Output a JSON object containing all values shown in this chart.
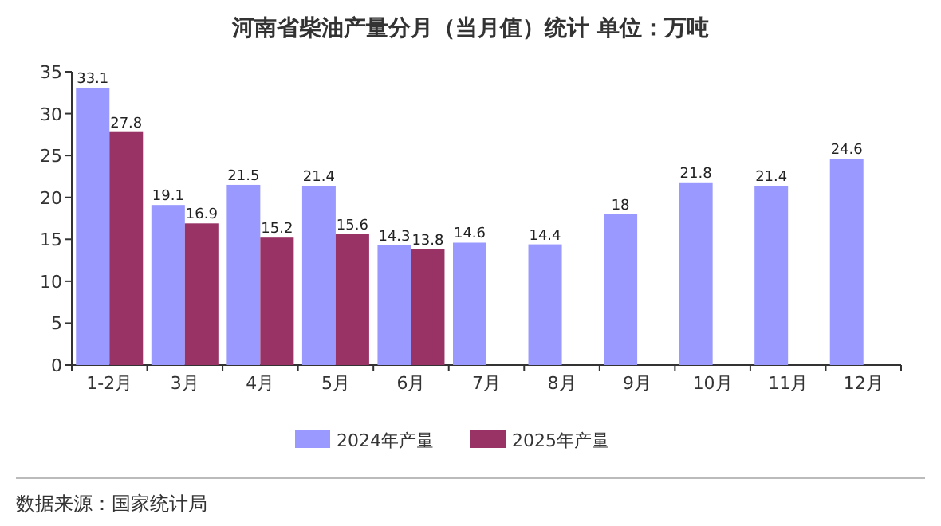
{
  "chart_data": {
    "type": "bar",
    "title": "河南省柴油产量分月（当月值）统计  单位：万吨",
    "categories": [
      "1-2月",
      "3月",
      "4月",
      "5月",
      "6月",
      "7月",
      "8月",
      "9月",
      "10月",
      "11月",
      "12月"
    ],
    "series": [
      {
        "name": "2024年产量",
        "color": "#9999ff",
        "values": [
          33.1,
          19.1,
          21.5,
          21.4,
          14.3,
          14.6,
          14.4,
          18,
          21.8,
          21.4,
          24.6
        ]
      },
      {
        "name": "2025年产量",
        "color": "#993366",
        "values": [
          27.8,
          16.9,
          15.2,
          15.6,
          13.8,
          null,
          null,
          null,
          null,
          null,
          null
        ]
      }
    ],
    "ylim": [
      0,
      35
    ],
    "yticks": [
      0,
      5,
      10,
      15,
      20,
      25,
      30,
      35
    ],
    "data_labels": true,
    "legend": "bottom",
    "annotations": [
      "数据来源：国家统计局"
    ]
  }
}
